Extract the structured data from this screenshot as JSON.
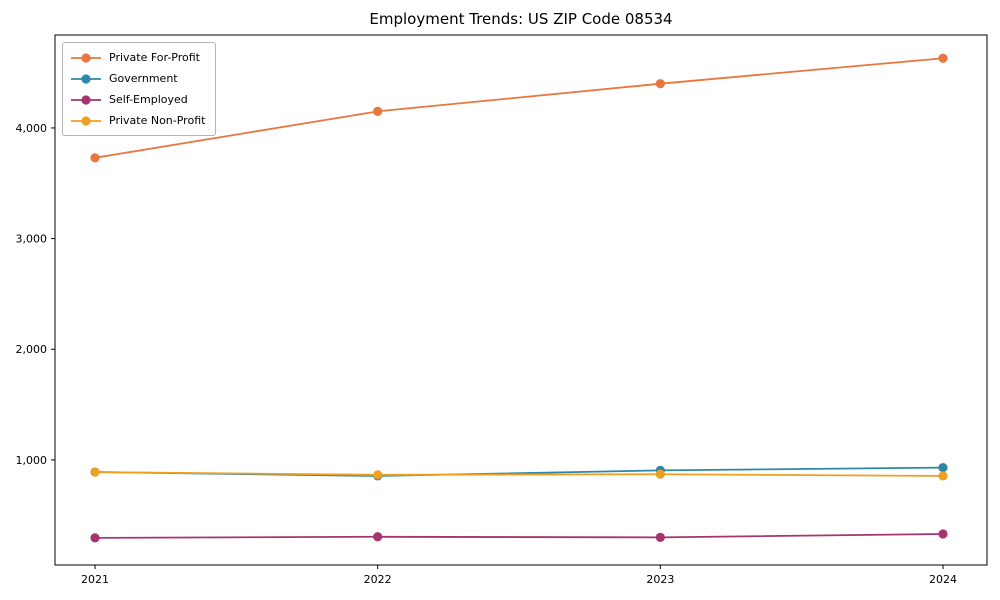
{
  "chart_data": {
    "type": "line",
    "title": "Employment Trends: US ZIP Code 08534",
    "xlabel": "",
    "ylabel": "",
    "categories": [
      "2021",
      "2022",
      "2023",
      "2024"
    ],
    "series": [
      {
        "name": "Private For-Profit",
        "color": "#E8763D",
        "values": [
          3730,
          4150,
          4400,
          4630
        ]
      },
      {
        "name": "Government",
        "color": "#2E87A5",
        "values": [
          890,
          855,
          905,
          930
        ]
      },
      {
        "name": "Self-Employed",
        "color": "#A53471",
        "values": [
          295,
          305,
          300,
          330
        ]
      },
      {
        "name": "Private Non-Profit",
        "color": "#EFA021",
        "values": [
          890,
          865,
          870,
          855
        ]
      }
    ],
    "yticks": [
      1000,
      2000,
      3000,
      4000
    ],
    "ytick_labels": [
      "1,000",
      "2,000",
      "3,000",
      "4,000"
    ],
    "ylim": [
      50,
      4840
    ],
    "grid": false,
    "legend_position": "upper-left",
    "marker": "circle",
    "axis_color": "#000000",
    "tick_label_color": "#000000",
    "background_color": "#ffffff"
  }
}
